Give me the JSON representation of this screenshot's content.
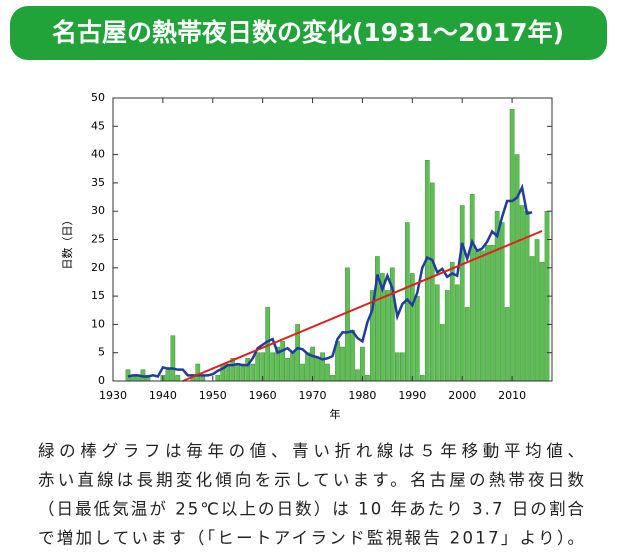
{
  "chart_data": {
    "type": "bar",
    "title": "名古屋の熱帯夜日数の変化(1931～2017年)",
    "ylabel": "日数（日）",
    "xlabel": "年",
    "x": [
      1931,
      1932,
      1933,
      1934,
      1935,
      1936,
      1937,
      1938,
      1939,
      1940,
      1941,
      1942,
      1943,
      1944,
      1945,
      1946,
      1947,
      1948,
      1949,
      1950,
      1951,
      1952,
      1953,
      1954,
      1955,
      1956,
      1957,
      1958,
      1959,
      1960,
      1961,
      1962,
      1963,
      1964,
      1965,
      1966,
      1967,
      1968,
      1969,
      1970,
      1971,
      1972,
      1973,
      1974,
      1975,
      1976,
      1977,
      1978,
      1979,
      1980,
      1981,
      1982,
      1983,
      1984,
      1985,
      1986,
      1987,
      1988,
      1989,
      1990,
      1991,
      1992,
      1993,
      1994,
      1995,
      1996,
      1997,
      1998,
      1999,
      2000,
      2001,
      2002,
      2003,
      2004,
      2005,
      2006,
      2007,
      2008,
      2009,
      2010,
      2011,
      2012,
      2013,
      2014,
      2015,
      2016,
      2017
    ],
    "series": [
      {
        "type": "bar",
        "color": "#5fbf55",
        "values": [
          0,
          0,
          2,
          1,
          1,
          2,
          1,
          0,
          0,
          1,
          2,
          8,
          1,
          0,
          0,
          1,
          3,
          1,
          0,
          0,
          1,
          3,
          3,
          4,
          3,
          3,
          4,
          3,
          5,
          5,
          13,
          5,
          6,
          7,
          4,
          5,
          10,
          3,
          5,
          6,
          4,
          5,
          3,
          1,
          7,
          6,
          20,
          9,
          2,
          6,
          1,
          16,
          22,
          19,
          16,
          20,
          5,
          5,
          28,
          19,
          15,
          1,
          39,
          35,
          17,
          10,
          16,
          21,
          17,
          31,
          13,
          33,
          23,
          23,
          24,
          24,
          30,
          28,
          13,
          48,
          40,
          31,
          30,
          22,
          25,
          21,
          30
        ]
      },
      {
        "type": "line",
        "color": "#1f3c9e",
        "values": [
          null,
          null,
          0.8,
          1,
          1,
          0.8,
          0.8,
          1,
          0.8,
          2.4,
          2.2,
          2.2,
          2,
          2,
          1,
          1,
          1,
          1,
          1,
          1.2,
          1.8,
          2.2,
          2.8,
          2.8,
          3,
          2.8,
          2.8,
          4,
          5.8,
          6.4,
          7,
          7.4,
          5,
          5.4,
          5.8,
          5,
          5.8,
          5.6,
          4.8,
          4.4,
          4.2,
          3.8,
          4,
          4.4,
          7.4,
          8.6,
          8.6,
          8.8,
          7.6,
          7,
          10.4,
          12.6,
          18.8,
          16.2,
          18.6,
          16.4,
          11.4,
          13.6,
          14.4,
          13.4,
          15.6,
          20,
          21.8,
          21.4,
          19.2,
          19.8,
          18.4,
          19,
          18.6,
          24.4,
          21.6,
          24.6,
          23,
          23.4,
          24.6,
          26.4,
          25.6,
          29,
          31.8,
          31.8,
          32.4,
          34.2,
          29.6,
          29.8,
          null,
          null,
          null
        ]
      }
    ],
    "trend": {
      "color": "#e0201c",
      "x": [
        1944,
        2016
      ],
      "values": [
        0,
        26.5
      ]
    },
    "xlim": [
      1930,
      2018
    ],
    "xticks": [
      1930,
      1940,
      1950,
      1960,
      1970,
      1980,
      1990,
      2000,
      2010
    ],
    "ylim": [
      0,
      50
    ],
    "yticks": [
      0,
      5,
      10,
      15,
      20,
      25,
      30,
      35,
      40,
      45,
      50
    ]
  },
  "caption": [
    "緑の棒グラフは毎年の値、青い折れ線は５年移動平均値、",
    "赤い直線は長期変化傾向を示しています。名古屋の熱帯夜日数",
    "（日最低気温が 25℃以上の日数）は 10 年あたり 3.7 日の割合",
    "で増加しています（「ヒートアイランド監視報告 2017」より）。"
  ]
}
